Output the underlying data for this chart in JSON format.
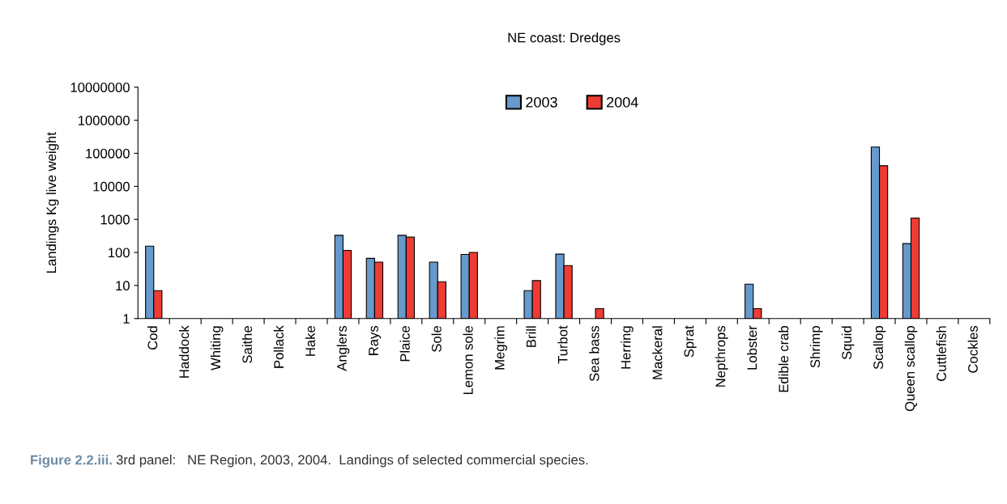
{
  "chart_data": {
    "type": "bar",
    "title": "NE coast: Dredges",
    "ylabel": "Landings Kg live weight",
    "categories": [
      "Cod",
      "Haddock",
      "Whiting",
      "Saithe",
      "Pollack",
      "Hake",
      "Anglers",
      "Rays",
      "Plaice",
      "Sole",
      "Lemon sole",
      "Megrim",
      "Brill",
      "Turbot",
      "Sea bass",
      "Herring",
      "Mackeral",
      "Sprat",
      "Nepthrops",
      "Lobster",
      "Edible crab",
      "Shrimp",
      "Squid",
      "Scallop",
      "Queen scallop",
      "Cuttlefish",
      "Cockles"
    ],
    "series": [
      {
        "name": "2003",
        "color": "#6699cc",
        "values": [
          155,
          null,
          null,
          null,
          null,
          null,
          330,
          66,
          330,
          51,
          87,
          null,
          7,
          89,
          null,
          null,
          null,
          null,
          null,
          11,
          null,
          null,
          null,
          155000,
          185,
          null,
          null
        ]
      },
      {
        "name": "2004",
        "color": "#ee3b33",
        "values": [
          7,
          null,
          null,
          null,
          null,
          null,
          115,
          51,
          290,
          13,
          100,
          null,
          14,
          40,
          2,
          null,
          null,
          null,
          null,
          2,
          null,
          null,
          null,
          42000,
          1100,
          null,
          null
        ]
      }
    ],
    "log": true,
    "ylim": [
      1,
      10000000
    ],
    "yticks": [
      1,
      10,
      100,
      1000,
      10000,
      100000,
      1000000,
      10000000
    ],
    "grid": false,
    "legend": "top",
    "annotations": [
      "Figure 2.2.iii.",
      "3rd panel:   NE Region, 2003, 2004.  Landings of selected commercial species."
    ]
  }
}
